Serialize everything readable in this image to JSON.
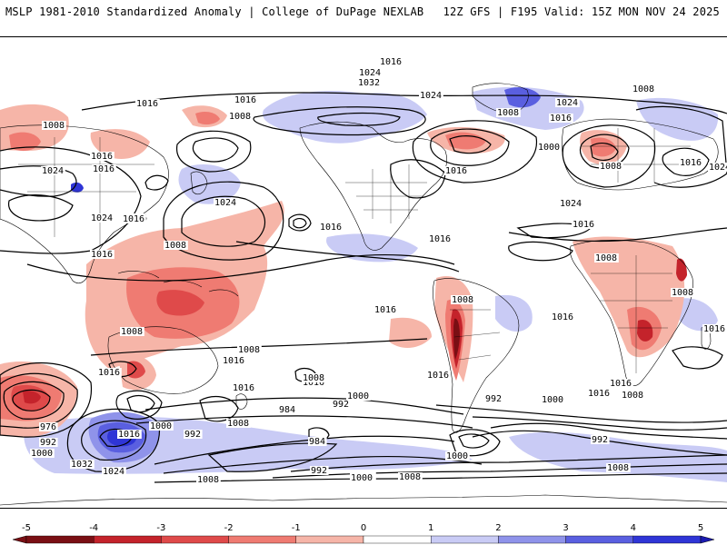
{
  "header": {
    "left": "MSLP 1981-2010 Standardized Anomaly | College of DuPage NEXLAB",
    "right": "12Z GFS | F195 Valid: 15Z MON NOV 24 2025"
  },
  "colors": {
    "neg5": "#7a0f14",
    "neg4": "#c4232b",
    "neg3": "#df4a4a",
    "neg2": "#ef7b72",
    "neg1": "#f6b5a8",
    "neutral": "#ffffff",
    "pos1": "#c9cbf5",
    "pos2": "#8f93ea",
    "pos3": "#5a5fe0",
    "pos4": "#2f35d6",
    "pos5": "#1a1ab0",
    "contour": "#000000",
    "coast": "#000000"
  },
  "colorbar": {
    "ticks": [
      "-5",
      "-4",
      "-3",
      "-2",
      "-1",
      "0",
      "1",
      "2",
      "3",
      "4",
      "5"
    ]
  },
  "isobar_labels": [
    {
      "text": "1016",
      "id": "l1"
    },
    {
      "text": "1024",
      "id": "l2"
    },
    {
      "text": "1032",
      "id": "l3"
    },
    {
      "text": "1024",
      "id": "l4"
    },
    {
      "text": "1016",
      "id": "l5"
    },
    {
      "text": "1008",
      "id": "l6"
    },
    {
      "text": "1016",
      "id": "l7"
    },
    {
      "text": "1008",
      "id": "l8"
    },
    {
      "text": "1016",
      "id": "l9"
    },
    {
      "text": "1024",
      "id": "l10"
    },
    {
      "text": "1016",
      "id": "l11"
    },
    {
      "text": "1024",
      "id": "l12"
    },
    {
      "text": "1016",
      "id": "l13"
    },
    {
      "text": "1008",
      "id": "l14"
    },
    {
      "text": "1008",
      "id": "l15"
    },
    {
      "text": "1016",
      "id": "l16"
    },
    {
      "text": "1000",
      "id": "l17"
    },
    {
      "text": "1016",
      "id": "l18"
    },
    {
      "text": "1008",
      "id": "l19"
    },
    {
      "text": "1024",
      "id": "l20"
    },
    {
      "text": "1016",
      "id": "l21"
    },
    {
      "text": "1008",
      "id": "l22"
    },
    {
      "text": "1016",
      "id": "l23"
    },
    {
      "text": "1000",
      "id": "l24"
    },
    {
      "text": "1016",
      "id": "l25"
    },
    {
      "text": "1024",
      "id": "l26"
    },
    {
      "text": "1024",
      "id": "l27"
    },
    {
      "text": "1016",
      "id": "l28"
    },
    {
      "text": "1024",
      "id": "l29"
    },
    {
      "text": "1016",
      "id": "l30"
    },
    {
      "text": "1016",
      "id": "l31"
    },
    {
      "text": "1016",
      "id": "l32"
    },
    {
      "text": "1008",
      "id": "l33"
    },
    {
      "text": "1008",
      "id": "l34"
    },
    {
      "text": "1008",
      "id": "l35"
    },
    {
      "text": "1016",
      "id": "l36"
    },
    {
      "text": "1008",
      "id": "l37"
    },
    {
      "text": "1016",
      "id": "l38"
    },
    {
      "text": "1016",
      "id": "l39"
    },
    {
      "text": "1008",
      "id": "l40"
    },
    {
      "text": "1016",
      "id": "l41"
    },
    {
      "text": "1016",
      "id": "l42"
    },
    {
      "text": "1008",
      "id": "l43"
    },
    {
      "text": "1016",
      "id": "l44"
    },
    {
      "text": "1016",
      "id": "l45"
    },
    {
      "text": "1008",
      "id": "l46"
    },
    {
      "text": "1016",
      "id": "l47"
    },
    {
      "text": "1016",
      "id": "l48"
    },
    {
      "text": "1008",
      "id": "l49"
    },
    {
      "text": "1000",
      "id": "l50"
    },
    {
      "text": "992",
      "id": "l51"
    },
    {
      "text": "984",
      "id": "l52"
    },
    {
      "text": "992",
      "id": "l53"
    },
    {
      "text": "1000",
      "id": "l54"
    },
    {
      "text": "976",
      "id": "l55"
    },
    {
      "text": "992",
      "id": "l56"
    },
    {
      "text": "1000",
      "id": "l57"
    },
    {
      "text": "1016",
      "id": "l58"
    },
    {
      "text": "1032",
      "id": "l59"
    },
    {
      "text": "1024",
      "id": "l60"
    },
    {
      "text": "984",
      "id": "l61"
    },
    {
      "text": "992",
      "id": "l62"
    },
    {
      "text": "1000",
      "id": "l63"
    },
    {
      "text": "1008",
      "id": "l64"
    },
    {
      "text": "1000",
      "id": "l65"
    },
    {
      "text": "1008",
      "id": "l66"
    },
    {
      "text": "992",
      "id": "l67"
    },
    {
      "text": "1000",
      "id": "l68"
    },
    {
      "text": "1008",
      "id": "l69"
    },
    {
      "text": "992",
      "id": "l70"
    },
    {
      "text": "1000",
      "id": "l71"
    },
    {
      "text": "1016",
      "id": "l72"
    },
    {
      "text": "1008",
      "id": "l73"
    }
  ]
}
